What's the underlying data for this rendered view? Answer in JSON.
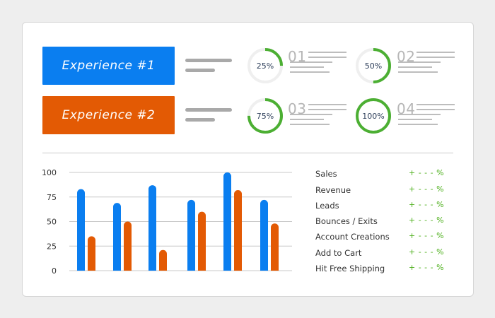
{
  "colors": {
    "blue": "#0a7ef0",
    "orange": "#e35a04",
    "green": "#4caf33",
    "ring_track": "#efefef"
  },
  "experiences": [
    {
      "label": "Experience #1",
      "color": "#0a7ef0"
    },
    {
      "label": "Experience #2",
      "color": "#e35a04"
    }
  ],
  "rings": [
    {
      "value": 25,
      "label": "25%",
      "number": "01"
    },
    {
      "value": 50,
      "label": "50%",
      "number": "02"
    },
    {
      "value": 75,
      "label": "75%",
      "number": "03"
    },
    {
      "value": 100,
      "label": "100%",
      "number": "04"
    }
  ],
  "metrics": [
    {
      "label": "Sales",
      "value": "+ - - - %"
    },
    {
      "label": "Revenue",
      "value": "+ - - - %"
    },
    {
      "label": "Leads",
      "value": "+ - - - %"
    },
    {
      "label": "Bounces / Exits",
      "value": "+ - - - %"
    },
    {
      "label": "Account Creations",
      "value": "+ - - - %"
    },
    {
      "label": "Add to Cart",
      "value": "+ - - - %"
    },
    {
      "label": "Hit Free Shipping",
      "value": "+ - - - %"
    }
  ],
  "chart_data": {
    "type": "bar",
    "ylim": [
      0,
      100
    ],
    "yticks": [
      "0",
      "25",
      "50",
      "75",
      "100"
    ],
    "grid": true,
    "series": [
      {
        "color": "#0a7ef0",
        "values": [
          83,
          69,
          87,
          72,
          100,
          72
        ]
      },
      {
        "color": "#e35a04",
        "values": [
          35,
          50,
          21,
          60,
          82,
          48
        ]
      }
    ]
  }
}
